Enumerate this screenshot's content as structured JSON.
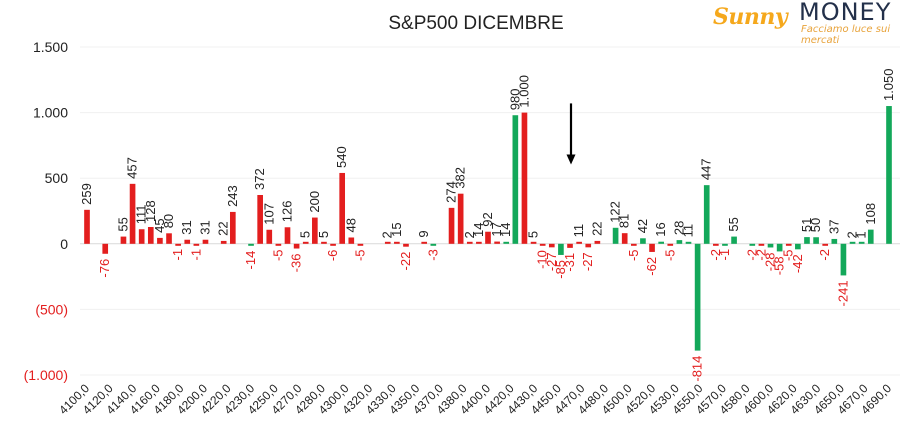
{
  "brand": {
    "word1": "Sunny",
    "word2": "MONEY",
    "tagline": "Facciamo luce sui mercati",
    "sun_color": "#f5a81c",
    "dark_color": "#23304a",
    "accent_color": "#e8a33b"
  },
  "chart_data": {
    "type": "bar",
    "title": "S&P500 DICEMBRE",
    "xlabel": "",
    "ylabel": "",
    "ylim": [
      -1000,
      1500
    ],
    "yticks": [
      {
        "value": 1500,
        "label": "1.500"
      },
      {
        "value": 1000,
        "label": "1.000"
      },
      {
        "value": 500,
        "label": "500"
      },
      {
        "value": 0,
        "label": "0"
      },
      {
        "value": -500,
        "label": "(500)"
      },
      {
        "value": -1000,
        "label": "(1.000)"
      }
    ],
    "grid": true,
    "legend": "none",
    "colors": {
      "red": "#e31e1e",
      "green": "#13a85a",
      "negative_label": "#e31e1e",
      "positive_label": "#222222"
    },
    "categories": [
      "4100,0",
      "4120,0",
      "4140,0",
      "4160,0",
      "4180,0",
      "4200,0",
      "4220,0",
      "4230,0",
      "4250,0",
      "4270,0",
      "4280,0",
      "4300,0",
      "4320,0",
      "4330,0",
      "4350,0",
      "4370,0",
      "4380,0",
      "4400,0",
      "4420,0",
      "4430,0",
      "4450,0",
      "4470,0",
      "4480,0",
      "4500,0",
      "4520,0",
      "4530,0",
      "4550,0",
      "4570,0",
      "4580,0",
      "4600,0",
      "4620,0",
      "4630,0",
      "4650,0",
      "4670,0",
      "4690,0"
    ],
    "category_slots": [
      0,
      2,
      4,
      6,
      8,
      10,
      12,
      14,
      16,
      18,
      20,
      22,
      24,
      26,
      28,
      30,
      32,
      34,
      36,
      38,
      40,
      42,
      44,
      46,
      48,
      50,
      52,
      54,
      56,
      58,
      60,
      62,
      64,
      66,
      68
    ],
    "slot_count": 70,
    "annotation": {
      "type": "arrow",
      "direction": "down",
      "slot": 41,
      "from_value": 1070,
      "to_value": 620
    },
    "bars": [
      {
        "slot": 0,
        "value": 259,
        "label": "259",
        "color": "red"
      },
      {
        "slot": 2,
        "value": -76,
        "label": "-76",
        "color": "red"
      },
      {
        "slot": 4,
        "value": 55,
        "label": "55",
        "color": "red"
      },
      {
        "slot": 5,
        "value": 457,
        "label": "457",
        "color": "red"
      },
      {
        "slot": 6,
        "value": 111,
        "label": "111",
        "color": "red"
      },
      {
        "slot": 7,
        "value": 128,
        "label": "128",
        "color": "red"
      },
      {
        "slot": 8,
        "value": 45,
        "label": "45",
        "color": "red"
      },
      {
        "slot": 9,
        "value": 80,
        "label": "80",
        "color": "red"
      },
      {
        "slot": 10,
        "value": -1,
        "label": "-1",
        "color": "red"
      },
      {
        "slot": 11,
        "value": 31,
        "label": "31",
        "color": "red"
      },
      {
        "slot": 12,
        "value": -1,
        "label": "-1",
        "color": "red"
      },
      {
        "slot": 13,
        "value": 31,
        "label": "31",
        "color": "red"
      },
      {
        "slot": 15,
        "value": 22,
        "label": "22",
        "color": "red"
      },
      {
        "slot": 16,
        "value": 243,
        "label": "243",
        "color": "red"
      },
      {
        "slot": 18,
        "value": -14,
        "label": "-14",
        "color": "green"
      },
      {
        "slot": 19,
        "value": 372,
        "label": "372",
        "color": "red"
      },
      {
        "slot": 20,
        "value": 107,
        "label": "107",
        "color": "red"
      },
      {
        "slot": 21,
        "value": -5,
        "label": "-5",
        "color": "red"
      },
      {
        "slot": 22,
        "value": 126,
        "label": "126",
        "color": "red"
      },
      {
        "slot": 23,
        "value": -36,
        "label": "-36",
        "color": "red"
      },
      {
        "slot": 24,
        "value": 5,
        "label": "5",
        "color": "red"
      },
      {
        "slot": 25,
        "value": 200,
        "label": "200",
        "color": "red"
      },
      {
        "slot": 26,
        "value": 5,
        "label": "5",
        "color": "red"
      },
      {
        "slot": 27,
        "value": -6,
        "label": "-6",
        "color": "red"
      },
      {
        "slot": 28,
        "value": 540,
        "label": "540",
        "color": "red"
      },
      {
        "slot": 29,
        "value": 48,
        "label": "48",
        "color": "red"
      },
      {
        "slot": 30,
        "value": -5,
        "label": "-5",
        "color": "red"
      },
      {
        "slot": 33,
        "value": 2,
        "label": "2",
        "color": "red"
      },
      {
        "slot": 34,
        "value": 15,
        "label": "15",
        "color": "red"
      },
      {
        "slot": 35,
        "value": -22,
        "label": "-22",
        "color": "red"
      },
      {
        "slot": 37,
        "value": 9,
        "label": "9",
        "color": "red"
      },
      {
        "slot": 38,
        "value": -3,
        "label": "-3",
        "color": "green"
      },
      {
        "slot": 40,
        "value": 274,
        "label": "274",
        "color": "red"
      },
      {
        "slot": 41,
        "value": 382,
        "label": "382",
        "color": "red"
      },
      {
        "slot": 42,
        "value": 2,
        "label": "2",
        "color": "red"
      },
      {
        "slot": 43,
        "value": 14,
        "label": "14",
        "color": "red"
      },
      {
        "slot": 44,
        "value": 92,
        "label": "92",
        "color": "red"
      },
      {
        "slot": 45,
        "value": 17,
        "label": "17",
        "color": "red"
      },
      {
        "slot": 46,
        "value": 14,
        "label": "14",
        "color": "green"
      },
      {
        "slot": 47,
        "value": 980,
        "label": "980",
        "color": "green"
      },
      {
        "slot": 48,
        "value": 1000,
        "label": "1.000",
        "color": "red"
      },
      {
        "slot": 49,
        "value": 5,
        "label": "5",
        "color": "red"
      },
      {
        "slot": 50,
        "value": -10,
        "label": "-10",
        "color": "red"
      },
      {
        "slot": 51,
        "value": -27,
        "label": "-27",
        "color": "red"
      },
      {
        "slot": 52,
        "value": -85,
        "label": "-85",
        "color": "green"
      },
      {
        "slot": 53,
        "value": -31,
        "label": "-31",
        "color": "red"
      },
      {
        "slot": 54,
        "value": 11,
        "label": "11",
        "color": "red"
      },
      {
        "slot": 55,
        "value": -27,
        "label": "-27",
        "color": "red"
      },
      {
        "slot": 56,
        "value": 22,
        "label": "22",
        "color": "red"
      },
      {
        "slot": 58,
        "value": 122,
        "label": "122",
        "color": "green"
      },
      {
        "slot": 59,
        "value": 81,
        "label": "81",
        "color": "red"
      },
      {
        "slot": 60,
        "value": -5,
        "label": "-5",
        "color": "red"
      },
      {
        "slot": 61,
        "value": 42,
        "label": "42",
        "color": "green"
      },
      {
        "slot": 62,
        "value": -62,
        "label": "-62",
        "color": "red"
      },
      {
        "slot": 63,
        "value": 16,
        "label": "16",
        "color": "green"
      },
      {
        "slot": 64,
        "value": -5,
        "label": "-5",
        "color": "red"
      },
      {
        "slot": 65,
        "value": 28,
        "label": "28",
        "color": "green"
      },
      {
        "slot": 66,
        "value": 11,
        "label": "11",
        "color": "green"
      },
      {
        "slot": 67,
        "value": -814,
        "label": "-814",
        "color": "green"
      },
      {
        "slot": 68,
        "value": 447,
        "label": "447",
        "color": "green"
      },
      {
        "slot": 69,
        "value": -2,
        "label": "-2",
        "color": "red"
      },
      {
        "slot": 70,
        "value": -1,
        "label": "-1",
        "color": "green"
      },
      {
        "slot": 71,
        "value": 55,
        "label": "55",
        "color": "green"
      },
      {
        "slot": 73,
        "value": -2,
        "label": "-2",
        "color": "green"
      },
      {
        "slot": 74,
        "value": -2,
        "label": "-2",
        "color": "red"
      },
      {
        "slot": 75,
        "value": -28,
        "label": "-28",
        "color": "green"
      },
      {
        "slot": 76,
        "value": -58,
        "label": "-58",
        "color": "green"
      },
      {
        "slot": 77,
        "value": -5,
        "label": "-5",
        "color": "red"
      },
      {
        "slot": 78,
        "value": -42,
        "label": "-42",
        "color": "green"
      },
      {
        "slot": 79,
        "value": 51,
        "label": "51",
        "color": "green"
      },
      {
        "slot": 80,
        "value": 50,
        "label": "50",
        "color": "green"
      },
      {
        "slot": 81,
        "value": -2,
        "label": "-2",
        "color": "red"
      },
      {
        "slot": 82,
        "value": 37,
        "label": "37",
        "color": "green"
      },
      {
        "slot": 83,
        "value": -241,
        "label": "-241",
        "color": "green"
      },
      {
        "slot": 84,
        "value": 2,
        "label": "2",
        "color": "green"
      },
      {
        "slot": 85,
        "value": 1,
        "label": "1",
        "color": "green"
      },
      {
        "slot": 86,
        "value": 108,
        "label": "108",
        "color": "green"
      },
      {
        "slot": 88,
        "value": 1050,
        "label": "1.050",
        "color": "green"
      }
    ]
  }
}
